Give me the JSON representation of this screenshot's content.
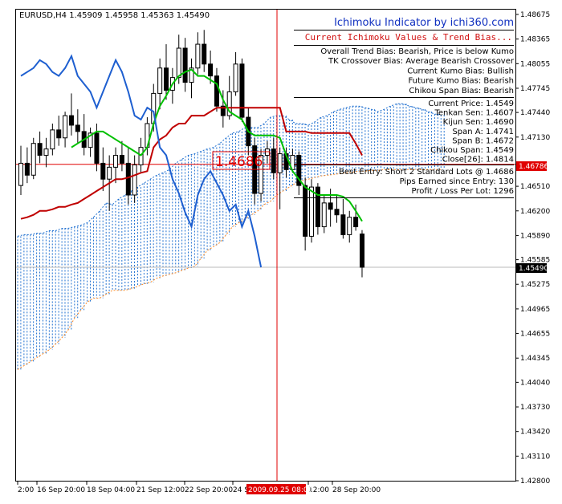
{
  "header": {
    "symbol_info": "EURUSD,H4  1.45909 1.45958 1.45363 1.45490",
    "indicator_title": "Ichimoku Indicator by ichi360.com",
    "subtitle": "Current Ichimoku Values & Trend Bias..."
  },
  "bias": [
    "Overall Trend Bias: Bearish, Price is below Kumo",
    "TK Crossover Bias: Average Bearish Crossover",
    "Current Kumo Bias: Bullish",
    "Future Kumo Bias: Bearish",
    "Chikou Span Bias: Bearish"
  ],
  "values": [
    "Current Price: 1.4549",
    "Tenkan Sen: 1.4607",
    "Kijun Sen: 1.4690",
    "Span A: 1.4741",
    "Span B: 1.4672",
    "Chikou Span: 1.4549",
    "Close[26]: 1.4814"
  ],
  "entry": [
    "Best Entry: Short 2 Standard Lots @ 1.4686",
    "Pips Earned since Entry: 130",
    "Profit / Loss Per Lot: 1296"
  ],
  "entry_marker": {
    "label": "1.4686",
    "price": 1.4686
  },
  "cursor_time": "2009.09.25 08:00",
  "price_axis": {
    "ticks": [
      "1.48675",
      "1.48365",
      "1.48055",
      "1.47745",
      "1.47440",
      "1.47130",
      "1.46510",
      "1.46200",
      "1.45890",
      "1.45585",
      "1.45275",
      "1.44965",
      "1.44655",
      "1.44345",
      "1.44040",
      "1.43730",
      "1.43420",
      "1.43110",
      "1.42800"
    ],
    "current_label": "1.45490",
    "line_label": "1.46786"
  },
  "time_axis": {
    "ticks": [
      "2:00",
      "16 Sep 20:00",
      "18 Sep 04:00",
      "21 Sep 12:00",
      "22 Sep 20:00",
      "24 S",
      "12:00",
      "28 Sep 20:00"
    ]
  },
  "colors": {
    "price_bull": "#000000",
    "tenkan": "#00c000",
    "kijun": "#c00000",
    "chikou": "#1e5fd0",
    "kumo": "#1e6fd0",
    "span_b_edge": "#ff8c28",
    "cursor": "#e00000",
    "title_blue": "#1030c0",
    "subtitle_red": "#d01010"
  },
  "chart_data": {
    "type": "candlestick",
    "symbol": "EURUSD",
    "timeframe": "H4",
    "ylim": [
      1.428,
      1.48675
    ],
    "ohlc": [
      [
        1.4652,
        1.4702,
        1.464,
        1.468
      ],
      [
        1.468,
        1.47,
        1.4655,
        1.4665
      ],
      [
        1.4665,
        1.4712,
        1.466,
        1.4705
      ],
      [
        1.4705,
        1.472,
        1.468,
        1.469
      ],
      [
        1.469,
        1.4712,
        1.4675,
        1.4698
      ],
      [
        1.4698,
        1.473,
        1.469,
        1.4722
      ],
      [
        1.4722,
        1.474,
        1.4702,
        1.4712
      ],
      [
        1.4712,
        1.4745,
        1.47,
        1.474
      ],
      [
        1.474,
        1.4768,
        1.4715,
        1.4728
      ],
      [
        1.4728,
        1.4748,
        1.4705,
        1.472
      ],
      [
        1.472,
        1.4742,
        1.469,
        1.47
      ],
      [
        1.47,
        1.4725,
        1.4688,
        1.4718
      ],
      [
        1.4718,
        1.473,
        1.467,
        1.468
      ],
      [
        1.468,
        1.47,
        1.4645,
        1.466
      ],
      [
        1.466,
        1.469,
        1.462,
        1.4675
      ],
      [
        1.4675,
        1.47,
        1.4655,
        1.469
      ],
      [
        1.469,
        1.4708,
        1.467,
        1.468
      ],
      [
        1.468,
        1.47,
        1.4628,
        1.464
      ],
      [
        1.464,
        1.469,
        1.463,
        1.4678
      ],
      [
        1.4678,
        1.4712,
        1.4668,
        1.47
      ],
      [
        1.47,
        1.4738,
        1.469,
        1.473
      ],
      [
        1.473,
        1.478,
        1.472,
        1.4768
      ],
      [
        1.4768,
        1.4812,
        1.4748,
        1.48
      ],
      [
        1.48,
        1.483,
        1.476,
        1.4772
      ],
      [
        1.4772,
        1.48,
        1.4755,
        1.4788
      ],
      [
        1.4788,
        1.4842,
        1.478,
        1.4825
      ],
      [
        1.4825,
        1.4838,
        1.477,
        1.4782
      ],
      [
        1.4782,
        1.4812,
        1.4762,
        1.48
      ],
      [
        1.48,
        1.4845,
        1.4792,
        1.483
      ],
      [
        1.483,
        1.4848,
        1.4795,
        1.4805
      ],
      [
        1.4805,
        1.4822,
        1.478,
        1.479
      ],
      [
        1.479,
        1.48,
        1.4745,
        1.4752
      ],
      [
        1.4752,
        1.4772,
        1.4725,
        1.474
      ],
      [
        1.474,
        1.479,
        1.4735,
        1.477
      ],
      [
        1.477,
        1.482,
        1.4765,
        1.4805
      ],
      [
        1.4805,
        1.4812,
        1.4732,
        1.4738
      ],
      [
        1.4738,
        1.475,
        1.469,
        1.4702
      ],
      [
        1.4702,
        1.4712,
        1.4628,
        1.4642
      ],
      [
        1.4642,
        1.4698,
        1.4632,
        1.469
      ],
      [
        1.469,
        1.4708,
        1.468,
        1.4698
      ],
      [
        1.4698,
        1.4712,
        1.466,
        1.4668
      ],
      [
        1.4668,
        1.47,
        1.4622,
        1.4692
      ],
      [
        1.4692,
        1.47,
        1.4662,
        1.4672
      ],
      [
        1.4672,
        1.4698,
        1.4668,
        1.469
      ],
      [
        1.469,
        1.4695,
        1.464,
        1.4652
      ],
      [
        1.4652,
        1.4662,
        1.457,
        1.4588
      ],
      [
        1.4588,
        1.466,
        1.458,
        1.465
      ],
      [
        1.465,
        1.4655,
        1.459,
        1.46
      ],
      [
        1.46,
        1.464,
        1.4592,
        1.463
      ],
      [
        1.463,
        1.4648,
        1.46,
        1.4622
      ],
      [
        1.4622,
        1.464,
        1.4605,
        1.4615
      ],
      [
        1.4615,
        1.4635,
        1.4585,
        1.459
      ],
      [
        1.459,
        1.462,
        1.458,
        1.4612
      ],
      [
        1.4612,
        1.4628,
        1.4595,
        1.46
      ],
      [
        1.45909,
        1.45958,
        1.45363,
        1.4549
      ]
    ],
    "tenkan": [
      null,
      null,
      null,
      null,
      null,
      null,
      null,
      null,
      1.47,
      1.4705,
      1.471,
      1.4715,
      1.472,
      1.472,
      1.4715,
      1.471,
      1.4705,
      1.47,
      1.4695,
      1.469,
      1.47,
      1.473,
      1.4752,
      1.4765,
      1.478,
      1.479,
      1.4795,
      1.4798,
      1.479,
      1.479,
      1.4785,
      1.478,
      1.476,
      1.4745,
      1.474,
      1.4735,
      1.472,
      1.4715,
      1.4715,
      1.4715,
      1.4715,
      1.4712,
      1.469,
      1.467,
      1.466,
      1.465,
      1.4645,
      1.464,
      1.464,
      1.464,
      1.464,
      1.4638,
      1.4632,
      1.462,
      1.4607
    ],
    "kijun": [
      1.461,
      1.4612,
      1.4615,
      1.462,
      1.462,
      1.4622,
      1.4625,
      1.4625,
      1.4628,
      1.463,
      1.4635,
      1.464,
      1.4645,
      1.465,
      1.4655,
      1.466,
      1.466,
      1.4662,
      1.4665,
      1.4668,
      1.467,
      1.47,
      1.471,
      1.4715,
      1.4725,
      1.473,
      1.473,
      1.474,
      1.474,
      1.474,
      1.4745,
      1.475,
      1.475,
      1.475,
      1.475,
      1.475,
      1.475,
      1.475,
      1.475,
      1.475,
      1.475,
      1.475,
      1.472,
      1.472,
      1.472,
      1.472,
      1.4718,
      1.4718,
      1.4718,
      1.4718,
      1.4718,
      1.4718,
      1.4718,
      1.4705,
      1.469
    ],
    "chikou": [
      1.479,
      1.4795,
      1.48,
      1.481,
      1.4805,
      1.4795,
      1.479,
      1.48,
      1.4815,
      1.479,
      1.478,
      1.477,
      1.475,
      1.477,
      1.479,
      1.481,
      1.4795,
      1.477,
      1.474,
      1.4735,
      1.475,
      1.4745,
      1.47,
      1.469,
      1.466,
      1.4642,
      1.4618,
      1.46,
      1.464,
      1.466,
      1.467,
      1.4655,
      1.464,
      1.462,
      1.4628,
      1.46,
      1.462,
      1.4588,
      1.4549
    ],
    "span_a": [
      1.4588,
      1.459,
      1.459,
      1.4592,
      1.4592,
      1.4595,
      1.4595,
      1.4598,
      1.4598,
      1.46,
      1.4602,
      1.4605,
      1.4612,
      1.462,
      1.463,
      1.4628,
      1.4635,
      1.464,
      1.4645,
      1.465,
      1.4655,
      1.466,
      1.4665,
      1.4668,
      1.4672,
      1.468,
      1.4685,
      1.469,
      1.4692,
      1.4695,
      1.4698,
      1.47,
      1.4705,
      1.4712,
      1.4718,
      1.472,
      1.4725,
      1.4725,
      1.4725,
      1.473,
      1.4738,
      1.474,
      1.474,
      1.4735,
      1.473,
      1.473,
      1.4728,
      1.4732,
      1.4738,
      1.474,
      1.4745,
      1.4748,
      1.475,
      1.4752,
      1.4752,
      1.475,
      1.4748,
      1.4745,
      1.4748,
      1.4752,
      1.4755,
      1.4755,
      1.4752,
      1.475,
      1.4748,
      1.4745,
      1.4742,
      1.4741
    ],
    "span_b": [
      1.442,
      1.4425,
      1.443,
      1.4435,
      1.444,
      1.4445,
      1.4452,
      1.446,
      1.447,
      1.4485,
      1.4495,
      1.4505,
      1.451,
      1.451,
      1.4515,
      1.452,
      1.452,
      1.452,
      1.4522,
      1.4525,
      1.4528,
      1.453,
      1.4535,
      1.4538,
      1.454,
      1.4542,
      1.4545,
      1.4548,
      1.455,
      1.456,
      1.457,
      1.4575,
      1.458,
      1.459,
      1.46,
      1.4605,
      1.461,
      1.4615,
      1.462,
      1.4628,
      1.4632,
      1.464,
      1.4645,
      1.465,
      1.4655,
      1.4658,
      1.466,
      1.4662,
      1.4664,
      1.4665,
      1.4666,
      1.4667,
      1.4668,
      1.4669,
      1.467,
      1.467,
      1.4671,
      1.4671,
      1.4672,
      1.4672,
      1.4672,
      1.4672,
      1.4672,
      1.4672,
      1.4672,
      1.4672,
      1.4672,
      1.4672
    ]
  }
}
